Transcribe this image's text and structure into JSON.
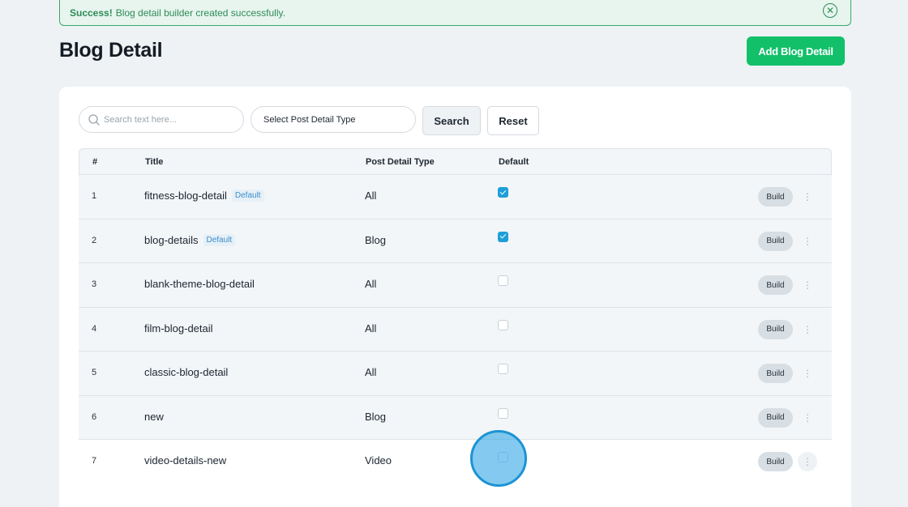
{
  "alert": {
    "strong": "Success!",
    "message": "Blog detail builder created successfully.",
    "close_glyph": "✕"
  },
  "header": {
    "title": "Blog Detail",
    "add_button": "Add Blog Detail"
  },
  "filters": {
    "search_placeholder": "Search text here...",
    "search_value": "",
    "select_label": "Select Post Detail Type",
    "search_button": "Search",
    "reset_button": "Reset"
  },
  "table": {
    "headers": {
      "num": "#",
      "title": "Title",
      "type": "Post Detail Type",
      "default": "Default"
    },
    "default_badge": "Default",
    "build_label": "Build",
    "kebab_glyph": "⋮",
    "rows": [
      {
        "num": "1",
        "title": "fitness-blog-detail",
        "is_default": true,
        "type": "All"
      },
      {
        "num": "2",
        "title": "blog-details",
        "is_default": true,
        "type": "Blog"
      },
      {
        "num": "3",
        "title": "blank-theme-blog-detail",
        "is_default": false,
        "type": "All"
      },
      {
        "num": "4",
        "title": "film-blog-detail",
        "is_default": false,
        "type": "All"
      },
      {
        "num": "5",
        "title": "classic-blog-detail",
        "is_default": false,
        "type": "All"
      },
      {
        "num": "6",
        "title": "new",
        "is_default": false,
        "type": "Blog"
      },
      {
        "num": "7",
        "title": "video-details-new",
        "is_default": false,
        "type": "Video"
      }
    ]
  },
  "colors": {
    "background": "#eef2f4",
    "success_green": "#12c06a",
    "checkbox_blue": "#1e9fd8",
    "badge_text": "#3d8ec9"
  },
  "icons": {
    "search": "search-icon",
    "close": "close-circle-icon",
    "kebab": "more-vertical-icon"
  }
}
